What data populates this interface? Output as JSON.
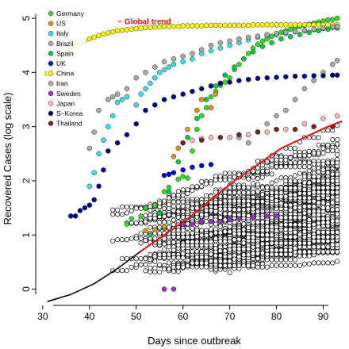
{
  "chart_data": {
    "type": "scatter",
    "xlabel": "Days since outbreak",
    "ylabel": "Recovered Cases (log scale)",
    "x_ticks": [
      "30",
      "40",
      "50",
      "60",
      "70",
      "80",
      "90"
    ],
    "y_ticks": [
      "0",
      "1",
      "2",
      "3",
      "4",
      "5"
    ],
    "xlim": [
      28.5,
      94.5
    ],
    "ylim": [
      -0.3,
      5.25
    ],
    "grid": false,
    "legend_position": "top-left",
    "annotation": {
      "text": "− Global trend",
      "color": "#ee1111",
      "x": 46,
      "y": 4.95
    },
    "series": [
      {
        "name": "Germany",
        "color": "#33dd22",
        "points": [
          [
            48,
            1.2
          ],
          [
            49,
            1.3
          ],
          [
            51,
            1.35
          ],
          [
            52,
            1.5
          ],
          [
            54,
            1.55
          ],
          [
            56,
            1.8
          ],
          [
            57,
            1.88
          ],
          [
            59,
            2.03
          ],
          [
            60,
            2.08
          ],
          [
            61,
            2.05
          ],
          [
            62,
            2.55
          ],
          [
            63,
            2.95
          ],
          [
            64,
            3.2
          ],
          [
            65,
            3.35
          ],
          [
            66,
            3.55
          ],
          [
            67,
            3.65
          ],
          [
            68,
            3.76
          ],
          [
            69,
            3.82
          ],
          [
            70,
            3.9
          ],
          [
            71,
            4.05
          ],
          [
            72,
            4.15
          ],
          [
            73,
            4.25
          ],
          [
            74,
            4.35
          ],
          [
            75,
            4.45
          ],
          [
            76,
            4.52
          ],
          [
            77,
            4.58
          ],
          [
            78,
            4.62
          ],
          [
            79,
            4.67
          ],
          [
            80,
            4.7
          ],
          [
            81,
            4.74
          ],
          [
            82,
            4.77
          ],
          [
            83,
            4.8
          ],
          [
            84,
            4.82
          ],
          [
            85,
            4.85
          ],
          [
            86,
            4.87
          ],
          [
            87,
            4.89
          ],
          [
            88,
            4.91
          ],
          [
            89,
            4.93
          ],
          [
            90,
            4.95
          ],
          [
            91,
            4.97
          ],
          [
            92,
            4.98
          ],
          [
            93,
            5.0
          ]
        ]
      },
      {
        "name": "US",
        "color": "#e09418",
        "points": [
          [
            52,
            1.08
          ],
          [
            54,
            1.1
          ],
          [
            56,
            1.15
          ],
          [
            58,
            2.45
          ],
          [
            59,
            2.6
          ],
          [
            60,
            2.7
          ],
          [
            61,
            2.95
          ],
          [
            63,
            3.3
          ],
          [
            64,
            3.5
          ],
          [
            66,
            3.35
          ],
          [
            67,
            3.6
          ],
          [
            68,
            3.8
          ]
        ]
      },
      {
        "name": "Italy",
        "color": "#38e0e0",
        "points": [
          [
            40,
            1.9
          ],
          [
            41,
            2.15
          ],
          [
            42,
            2.5
          ],
          [
            43,
            2.75
          ],
          [
            44,
            3.0
          ],
          [
            45,
            3.2
          ],
          [
            46,
            3.45
          ],
          [
            47,
            3.5
          ],
          [
            48,
            3.55
          ],
          [
            50,
            3.4
          ],
          [
            51,
            3.6
          ],
          [
            52,
            3.7
          ],
          [
            53,
            3.8
          ],
          [
            54,
            3.9
          ],
          [
            55,
            4.0
          ],
          [
            56,
            4.05
          ],
          [
            57,
            4.1
          ],
          [
            58,
            4.15
          ],
          [
            60,
            4.2
          ],
          [
            62,
            4.25
          ],
          [
            64,
            4.35
          ],
          [
            66,
            4.4
          ],
          [
            68,
            4.45
          ],
          [
            70,
            4.5
          ],
          [
            72,
            4.55
          ],
          [
            74,
            4.6
          ],
          [
            76,
            4.65
          ],
          [
            78,
            4.68
          ],
          [
            80,
            4.7
          ],
          [
            82,
            4.72
          ],
          [
            84,
            4.75
          ],
          [
            86,
            4.77
          ],
          [
            88,
            4.79
          ],
          [
            90,
            4.81
          ],
          [
            92,
            4.83
          ],
          [
            93,
            4.85
          ]
        ]
      },
      {
        "name": "Brazil",
        "color": "#a9a9a9",
        "points": [
          [
            72,
            2.8
          ],
          [
            74,
            2.7
          ],
          [
            76,
            2.9
          ],
          [
            78,
            3.05
          ],
          [
            80,
            3.2
          ],
          [
            82,
            3.3
          ],
          [
            84,
            3.5
          ],
          [
            86,
            3.7
          ],
          [
            88,
            3.85
          ],
          [
            90,
            4.0
          ],
          [
            92,
            4.15
          ],
          [
            93,
            4.22
          ]
        ]
      },
      {
        "name": "Spain",
        "color": "#00cc44",
        "points": [
          [
            53,
            1.0
          ],
          [
            55,
            1.4
          ],
          [
            57,
            1.8
          ],
          [
            59,
            2.35
          ],
          [
            61,
            2.8
          ],
          [
            63,
            3.15
          ],
          [
            65,
            3.5
          ],
          [
            67,
            3.75
          ],
          [
            69,
            3.95
          ],
          [
            71,
            4.1
          ],
          [
            73,
            4.25
          ],
          [
            75,
            4.38
          ],
          [
            77,
            4.48
          ],
          [
            79,
            4.55
          ],
          [
            81,
            4.62
          ],
          [
            83,
            4.66
          ],
          [
            85,
            4.7
          ],
          [
            87,
            4.74
          ],
          [
            89,
            4.77
          ],
          [
            91,
            4.8
          ],
          [
            93,
            4.82
          ]
        ]
      },
      {
        "name": "UK",
        "color": "#0000cc",
        "points": [
          [
            56,
            2.1
          ],
          [
            57,
            2.12
          ],
          [
            58,
            2.15
          ],
          [
            60,
            2.2
          ],
          [
            62,
            2.25
          ],
          [
            64,
            2.28
          ],
          [
            66,
            2.3
          ]
        ]
      },
      {
        "name": "China",
        "color": "#ffff00",
        "points": [
          [
            31,
            3.98
          ],
          [
            32,
            4.1
          ],
          [
            33,
            4.2
          ],
          [
            34,
            4.28
          ],
          [
            35,
            4.35
          ],
          [
            36,
            4.42
          ],
          [
            37,
            4.48
          ],
          [
            38,
            4.53
          ],
          [
            39,
            4.58
          ],
          [
            40,
            4.62
          ],
          [
            41,
            4.65
          ],
          [
            42,
            4.68
          ],
          [
            43,
            4.71
          ],
          [
            44,
            4.73
          ],
          [
            45,
            4.75
          ],
          [
            46,
            4.77
          ],
          [
            47,
            4.78
          ],
          [
            48,
            4.79
          ],
          [
            49,
            4.8
          ],
          [
            50,
            4.81
          ],
          [
            51,
            4.82
          ],
          [
            52,
            4.83
          ],
          [
            53,
            4.83
          ],
          [
            54,
            4.84
          ],
          [
            55,
            4.84
          ],
          [
            56,
            4.85
          ],
          [
            57,
            4.85
          ],
          [
            58,
            4.85
          ],
          [
            59,
            4.85
          ],
          [
            60,
            4.86
          ],
          [
            61,
            4.86
          ],
          [
            62,
            4.86
          ],
          [
            63,
            4.86
          ],
          [
            64,
            4.86
          ],
          [
            65,
            4.87
          ],
          [
            66,
            4.87
          ],
          [
            67,
            4.87
          ],
          [
            68,
            4.87
          ],
          [
            69,
            4.87
          ],
          [
            70,
            4.87
          ],
          [
            71,
            4.87
          ],
          [
            72,
            4.87
          ],
          [
            73,
            4.87
          ],
          [
            74,
            4.87
          ],
          [
            75,
            4.88
          ],
          [
            76,
            4.88
          ],
          [
            77,
            4.88
          ],
          [
            78,
            4.88
          ],
          [
            79,
            4.88
          ],
          [
            80,
            4.88
          ],
          [
            81,
            4.88
          ],
          [
            82,
            4.88
          ],
          [
            83,
            4.88
          ],
          [
            84,
            4.88
          ],
          [
            85,
            4.88
          ],
          [
            86,
            4.88
          ],
          [
            87,
            4.88
          ],
          [
            88,
            4.88
          ],
          [
            89,
            4.88
          ],
          [
            90,
            4.88
          ],
          [
            91,
            4.88
          ],
          [
            92,
            4.88
          ],
          [
            93,
            4.88
          ]
        ]
      },
      {
        "name": "Iran",
        "color": "#aaaaaa",
        "points": [
          [
            40,
            2.6
          ],
          [
            41,
            2.9
          ],
          [
            42,
            3.3
          ],
          [
            44,
            3.5
          ],
          [
            45,
            3.55
          ],
          [
            46,
            3.6
          ],
          [
            48,
            3.7
          ],
          [
            50,
            3.9
          ],
          [
            52,
            4.0
          ],
          [
            54,
            4.1
          ],
          [
            56,
            4.2
          ],
          [
            58,
            4.25
          ],
          [
            60,
            4.3
          ],
          [
            62,
            4.35
          ],
          [
            64,
            4.42
          ],
          [
            66,
            4.5
          ],
          [
            68,
            4.55
          ],
          [
            70,
            4.58
          ],
          [
            72,
            4.62
          ],
          [
            74,
            4.65
          ],
          [
            76,
            4.67
          ],
          [
            78,
            4.7
          ],
          [
            80,
            4.72
          ],
          [
            82,
            4.74
          ],
          [
            84,
            4.76
          ],
          [
            86,
            4.78
          ],
          [
            88,
            4.8
          ],
          [
            90,
            4.82
          ],
          [
            92,
            4.84
          ],
          [
            93,
            4.85
          ]
        ]
      },
      {
        "name": "Sweden",
        "color": "#9933cc",
        "points": [
          [
            56,
            0.0
          ],
          [
            58,
            0.0
          ],
          [
            60,
            1.2
          ],
          [
            62,
            1.2
          ],
          [
            64,
            1.25
          ],
          [
            66,
            1.25
          ],
          [
            68,
            1.25
          ],
          [
            70,
            1.28
          ],
          [
            72,
            1.3
          ],
          [
            75,
            1.32
          ],
          [
            78,
            1.35
          ],
          [
            80,
            1.35
          ]
        ]
      },
      {
        "name": "Japan",
        "color": "#ffb6c1",
        "points": [
          [
            62,
            2.75
          ],
          [
            64,
            2.78
          ],
          [
            66,
            2.8
          ],
          [
            70,
            2.8
          ],
          [
            74,
            2.85
          ],
          [
            78,
            2.9
          ],
          [
            82,
            2.95
          ],
          [
            86,
            3.05
          ],
          [
            90,
            3.15
          ],
          [
            93,
            3.2
          ]
        ]
      },
      {
        "name": "S−Korea",
        "color": "#00008b",
        "points": [
          [
            36,
            1.35
          ],
          [
            37,
            1.35
          ],
          [
            38,
            1.45
          ],
          [
            39,
            1.5
          ],
          [
            40,
            1.55
          ],
          [
            41,
            1.65
          ],
          [
            42,
            1.9
          ],
          [
            43,
            2.2
          ],
          [
            44,
            2.55
          ],
          [
            46,
            2.7
          ],
          [
            48,
            2.85
          ],
          [
            50,
            3.05
          ],
          [
            52,
            3.3
          ],
          [
            54,
            3.4
          ],
          [
            56,
            3.5
          ],
          [
            58,
            3.55
          ],
          [
            60,
            3.6
          ],
          [
            62,
            3.65
          ],
          [
            64,
            3.7
          ],
          [
            66,
            3.75
          ],
          [
            68,
            3.8
          ],
          [
            70,
            3.82
          ],
          [
            72,
            3.85
          ],
          [
            74,
            3.87
          ],
          [
            76,
            3.89
          ],
          [
            78,
            3.9
          ],
          [
            80,
            3.91
          ],
          [
            82,
            3.92
          ],
          [
            84,
            3.93
          ],
          [
            86,
            3.93
          ],
          [
            88,
            3.94
          ],
          [
            90,
            3.94
          ],
          [
            92,
            3.95
          ],
          [
            93,
            3.95
          ]
        ]
      },
      {
        "name": "Thailand",
        "color": "#7b2020",
        "points": [
          [
            60,
            2.7
          ],
          [
            64,
            2.75
          ],
          [
            68,
            2.8
          ],
          [
            72,
            2.85
          ],
          [
            76,
            2.9
          ],
          [
            80,
            2.95
          ],
          [
            84,
            2.95
          ],
          [
            88,
            3.0
          ],
          [
            92,
            3.0
          ]
        ]
      }
    ],
    "other_countries": {
      "color": "#ffffff",
      "stroke": "#000000",
      "count": 100
    },
    "global_trend": {
      "points": [
        [
          31,
          -0.23
        ],
        [
          36,
          -0.1
        ],
        [
          41,
          0.1
        ],
        [
          46,
          0.38
        ],
        [
          51,
          0.7
        ],
        [
          56,
          1.0
        ],
        [
          61,
          1.3
        ],
        [
          66,
          1.65
        ],
        [
          71,
          2.0
        ],
        [
          76,
          2.3
        ],
        [
          81,
          2.6
        ],
        [
          86,
          2.8
        ],
        [
          91,
          3.0
        ],
        [
          94,
          3.1
        ]
      ],
      "red_from_x": 54
    }
  }
}
